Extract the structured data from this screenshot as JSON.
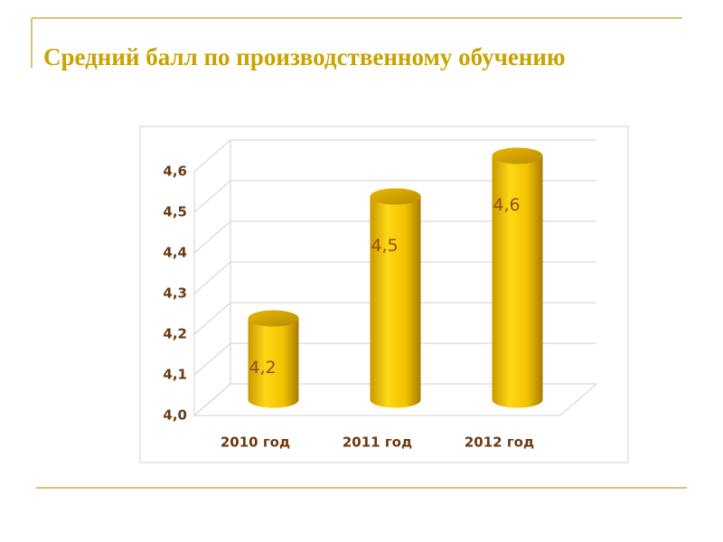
{
  "chart_data": {
    "type": "bar",
    "title": "Средний балл по производственному обучению",
    "categories": [
      "2010 год",
      "2011 год",
      "2012 год"
    ],
    "values": [
      4.2,
      4.5,
      4.6
    ],
    "value_labels": [
      "4,2",
      "4,5",
      "4,6"
    ],
    "color": "#f5c400",
    "ylim": [
      4.0,
      4.6
    ],
    "yticks": [
      {
        "value": 4.0,
        "label": "4,0"
      },
      {
        "value": 4.1,
        "label": "4,1"
      },
      {
        "value": 4.2,
        "label": "4,2"
      },
      {
        "value": 4.3,
        "label": "4,3"
      },
      {
        "value": 4.4,
        "label": "4,4"
      },
      {
        "value": 4.5,
        "label": "4,5"
      },
      {
        "value": 4.6,
        "label": "4,6"
      }
    ],
    "grid": true
  }
}
